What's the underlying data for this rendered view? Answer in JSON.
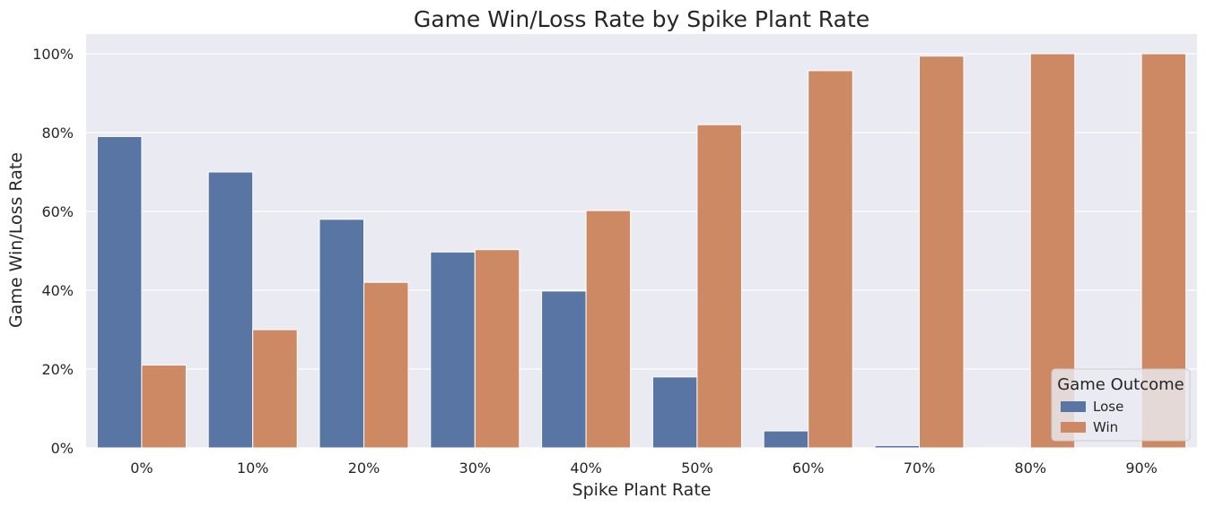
{
  "chart_data": {
    "type": "bar",
    "title": "Game Win/Loss Rate by Spike Plant Rate",
    "xlabel": "Spike Plant Rate",
    "ylabel": "Game Win/Loss Rate",
    "categories": [
      "0%",
      "10%",
      "20%",
      "30%",
      "40%",
      "50%",
      "60%",
      "70%",
      "80%",
      "90%"
    ],
    "series": [
      {
        "name": "Lose",
        "color": "#5875a4",
        "values": [
          79.0,
          70.0,
          58.0,
          49.7,
          39.8,
          18.0,
          4.3,
          0.6,
          0.0,
          0.0
        ]
      },
      {
        "name": "Win",
        "color": "#cc8963",
        "values": [
          21.0,
          30.0,
          42.0,
          50.3,
          60.2,
          82.0,
          95.7,
          99.4,
          100.0,
          100.0
        ]
      }
    ],
    "ylim": [
      0,
      105
    ],
    "yticks": [
      0,
      20,
      40,
      60,
      80,
      100
    ],
    "ytick_labels": [
      "0%",
      "20%",
      "40%",
      "60%",
      "80%",
      "100%"
    ],
    "grid": true,
    "legend": {
      "title": "Game Outcome",
      "placement": "lower-right"
    },
    "background_color": "#eaeaf2"
  }
}
